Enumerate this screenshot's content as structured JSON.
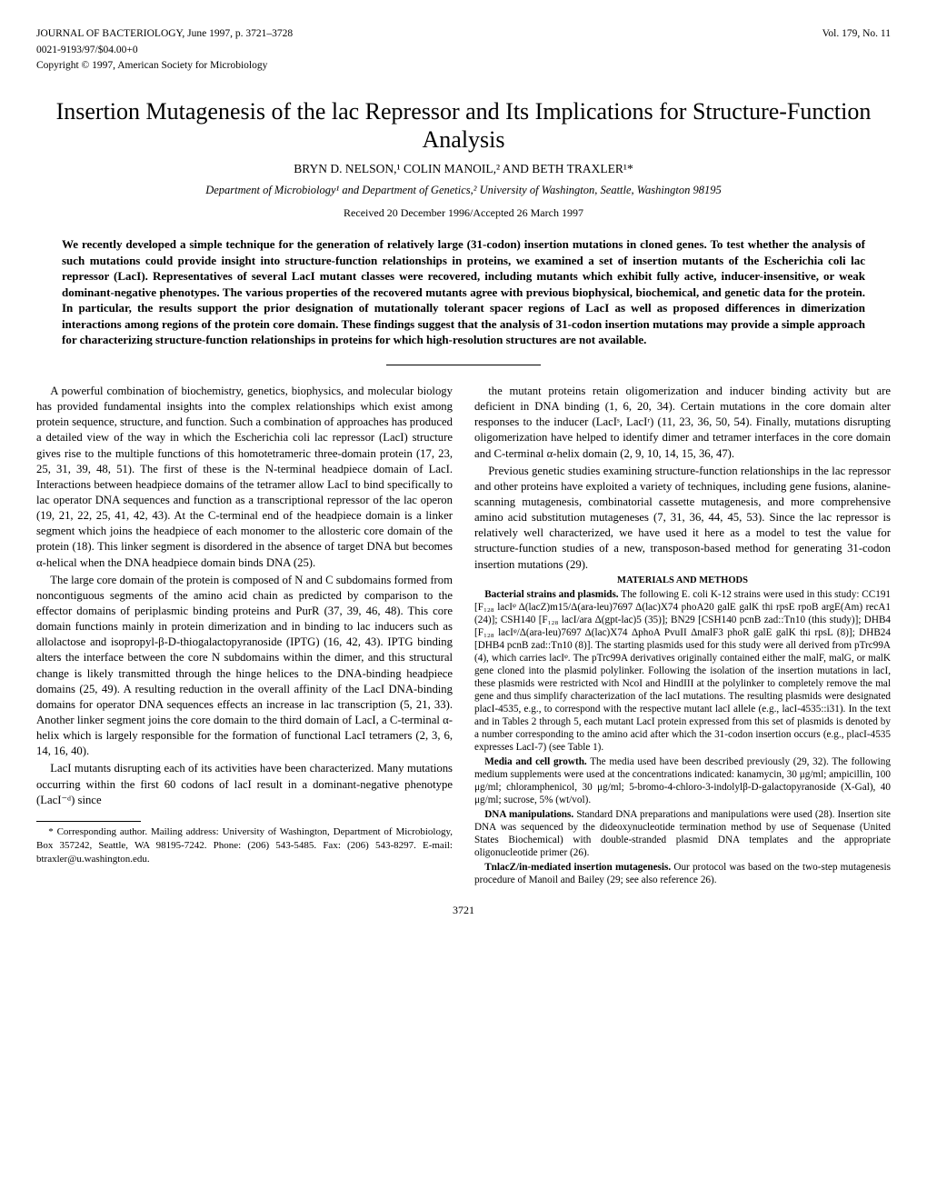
{
  "header": {
    "journal": "JOURNAL OF BACTERIOLOGY, June 1997, p. 3721–3728",
    "volume": "Vol. 179, No. 11",
    "issn": "0021-9193/97/$04.00+0",
    "copyright": "Copyright © 1997, American Society for Microbiology"
  },
  "title": "Insertion Mutagenesis of the lac Repressor and Its Implications for Structure-Function Analysis",
  "authors": "BRYN D. NELSON,¹ COLIN MANOIL,² AND BETH TRAXLER¹*",
  "affiliation": "Department of Microbiology¹ and Department of Genetics,² University of Washington, Seattle, Washington 98195",
  "received": "Received 20 December 1996/Accepted 26 March 1997",
  "abstract": "We recently developed a simple technique for the generation of relatively large (31-codon) insertion mutations in cloned genes. To test whether the analysis of such mutations could provide insight into structure-function relationships in proteins, we examined a set of insertion mutants of the Escherichia coli lac repressor (LacI). Representatives of several LacI mutant classes were recovered, including mutants which exhibit fully active, inducer-insensitive, or weak dominant-negative phenotypes. The various properties of the recovered mutants agree with previous biophysical, biochemical, and genetic data for the protein. In particular, the results support the prior designation of mutationally tolerant spacer regions of LacI as well as proposed differences in dimerization interactions among regions of the protein core domain. These findings suggest that the analysis of 31-codon insertion mutations may provide a simple approach for characterizing structure-function relationships in proteins for which high-resolution structures are not available.",
  "body": {
    "p1": "A powerful combination of biochemistry, genetics, biophysics, and molecular biology has provided fundamental insights into the complex relationships which exist among protein sequence, structure, and function. Such a combination of approaches has produced a detailed view of the way in which the Escherichia coli lac repressor (LacI) structure gives rise to the multiple functions of this homotetrameric three-domain protein (17, 23, 25, 31, 39, 48, 51). The first of these is the N-terminal headpiece domain of LacI. Interactions between headpiece domains of the tetramer allow LacI to bind specifically to lac operator DNA sequences and function as a transcriptional repressor of the lac operon (19, 21, 22, 25, 41, 42, 43). At the C-terminal end of the headpiece domain is a linker segment which joins the headpiece of each monomer to the allosteric core domain of the protein (18). This linker segment is disordered in the absence of target DNA but becomes α-helical when the DNA headpiece domain binds DNA (25).",
    "p2": "The large core domain of the protein is composed of N and C subdomains formed from noncontiguous segments of the amino acid chain as predicted by comparison to the effector domains of periplasmic binding proteins and PurR (37, 39, 46, 48). This core domain functions mainly in protein dimerization and in binding to lac inducers such as allolactose and isopropyl-β-D-thiogalactopyranoside (IPTG) (16, 42, 43). IPTG binding alters the interface between the core N subdomains within the dimer, and this structural change is likely transmitted through the hinge helices to the DNA-binding headpiece domains (25, 49). A resulting reduction in the overall affinity of the LacI DNA-binding domains for operator DNA sequences effects an increase in lac transcription (5, 21, 33). Another linker segment joins the core domain to the third domain of LacI, a C-terminal α-helix which is largely responsible for the formation of functional LacI tetramers (2, 3, 6, 14, 16, 40).",
    "p3": "LacI mutants disrupting each of its activities have been characterized. Many mutations occurring within the first 60 codons of lacI result in a dominant-negative phenotype (LacI⁻ᵈ) since",
    "p4": "the mutant proteins retain oligomerization and inducer binding activity but are deficient in DNA binding (1, 6, 20, 34). Certain mutations in the core domain alter responses to the inducer (LacIˢ, LacIʳ) (11, 23, 36, 50, 54). Finally, mutations disrupting oligomerization have helped to identify dimer and tetramer interfaces in the core domain and C-terminal α-helix domain (2, 9, 10, 14, 15, 36, 47).",
    "p5": "Previous genetic studies examining structure-function relationships in the lac repressor and other proteins have exploited a variety of techniques, including gene fusions, alanine-scanning mutagenesis, combinatorial cassette mutagenesis, and more comprehensive amino acid substitution mutageneses (7, 31, 36, 44, 45, 53). Since the lac repressor is relatively well characterized, we have used it here as a model to test the value for structure-function studies of a new, transposon-based method for generating 31-codon insertion mutations (29)."
  },
  "methods": {
    "heading": "MATERIALS AND METHODS",
    "p1lead": "Bacterial strains and plasmids.",
    "p1": " The following E. coli K-12 strains were used in this study: CC191 [F₁₂₈ lacIᵠ Δ(lacZ)m15/Δ(ara-leu)7697 Δ(lac)X74 phoA20 galE galK thi rpsE rpoB argE(Am) recA1 (24)]; CSH140 [F₁₂₈ lacI/ara Δ(gpt-lac)5 (35)]; BN29 [CSH140 pcnB zad::Tn10 (this study)]; DHB4 [F₁₂₈ lacIᵠ/Δ(ara-leu)7697 Δ(lac)X74 ΔphoA PvuII ΔmalF3 phoR galE galK thi rpsL (8)]; DHB24 [DHB4 pcnB zad::Tn10 (8)]. The starting plasmids used for this study were all derived from pTrc99A (4), which carries lacIᵠ. The pTrc99A derivatives originally contained either the malF, malG, or malK gene cloned into the plasmid polylinker. Following the isolation of the insertion mutations in lacI, these plasmids were restricted with NcoI and HindIII at the polylinker to completely remove the mal gene and thus simplify characterization of the lacI mutations. The resulting plasmids were designated placI-4535, e.g., to correspond with the respective mutant lacI allele (e.g., lacI-4535::i31). In the text and in Tables 2 through 5, each mutant LacI protein expressed from this set of plasmids is denoted by a number corresponding to the amino acid after which the 31-codon insertion occurs (e.g., placI-4535 expresses LacI-7) (see Table 1).",
    "p2lead": "Media and cell growth.",
    "p2": " The media used have been described previously (29, 32). The following medium supplements were used at the concentrations indicated: kanamycin, 30 μg/ml; ampicillin, 100 μg/ml; chloramphenicol, 30 μg/ml; 5-bromo-4-chloro-3-indolylβ-D-galactopyranoside (X-Gal), 40 μg/ml; sucrose, 5% (wt/vol).",
    "p3lead": "DNA manipulations.",
    "p3": " Standard DNA preparations and manipulations were used (28). Insertion site DNA was sequenced by the dideoxynucleotide termination method by use of Sequenase (United States Biochemical) with double-stranded plasmid DNA templates and the appropriate oligonucleotide primer (26).",
    "p4lead": "TnlacZ/in-mediated insertion mutagenesis.",
    "p4": " Our protocol was based on the two-step mutagenesis procedure of Manoil and Bailey (29; see also reference 26)."
  },
  "footnote": "* Corresponding author. Mailing address: University of Washington, Department of Microbiology, Box 357242, Seattle, WA 98195-7242. Phone: (206) 543-5485. Fax: (206) 543-8297. E-mail: btraxler@u.washington.edu.",
  "page_number": "3721"
}
